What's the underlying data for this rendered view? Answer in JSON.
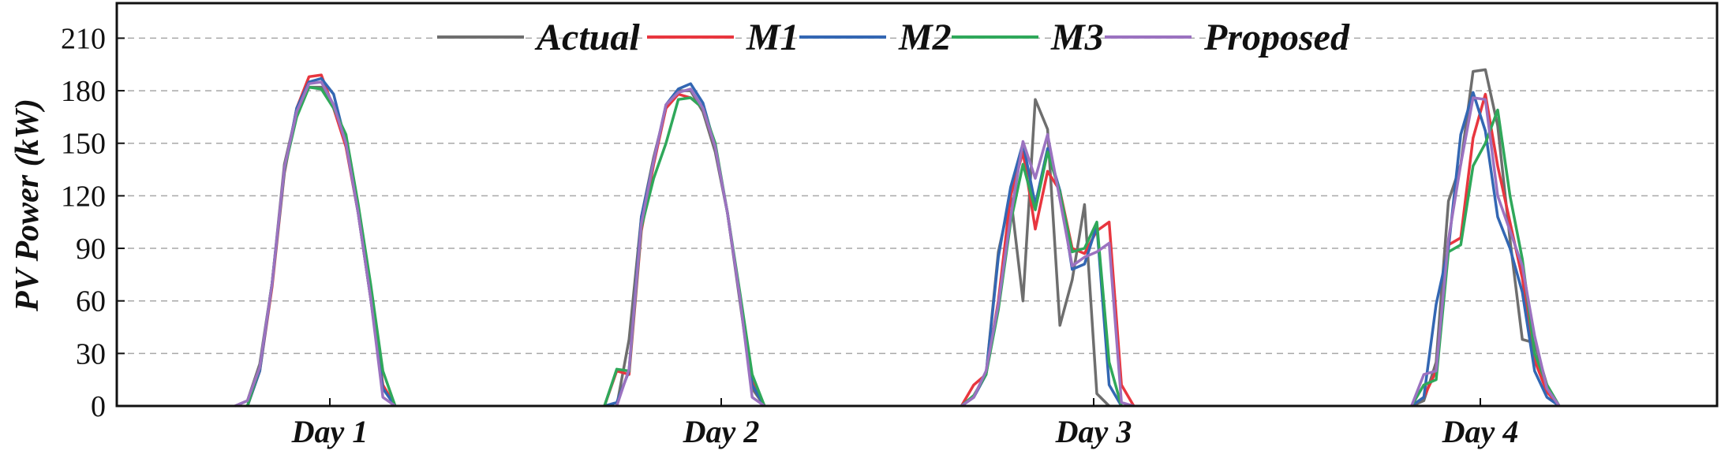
{
  "chart_data": {
    "type": "line",
    "title": "",
    "xlabel": "",
    "ylabel": "PV Power (kW)",
    "ylim": [
      0,
      230
    ],
    "yticks": [
      0,
      30,
      60,
      90,
      120,
      150,
      180,
      210
    ],
    "grid": "horizontal dashed",
    "legend_position": "top",
    "day_labels": [
      "Day 1",
      "Day 2",
      "Day 3",
      "Day 4"
    ],
    "x_points_per_day": 24,
    "series": [
      {
        "name": "Actual",
        "color": "#6e6e6e",
        "values": [
          0,
          0,
          0,
          0,
          0,
          0,
          0,
          0,
          0,
          0,
          3,
          24,
          70,
          138,
          168,
          182,
          182,
          170,
          150,
          110,
          62,
          10,
          0,
          0,
          0,
          0,
          0,
          0,
          0,
          0,
          0,
          0,
          0,
          0,
          0,
          38,
          108,
          142,
          170,
          180,
          180,
          168,
          145,
          110,
          60,
          10,
          0,
          0,
          0,
          0,
          0,
          0,
          0,
          0,
          0,
          0,
          0,
          5,
          18,
          88,
          120,
          60,
          175,
          158,
          46,
          72,
          115,
          7,
          0,
          0,
          0,
          0,
          0,
          0,
          0,
          0,
          0,
          0,
          0,
          0,
          0,
          0,
          0,
          0,
          0,
          3,
          25,
          117,
          138,
          191,
          192,
          160,
          95,
          38,
          36,
          12,
          0,
          0
        ]
      },
      {
        "name": "M1",
        "color": "#e8363f",
        "values": [
          0,
          0,
          0,
          0,
          0,
          0,
          0,
          0,
          0,
          0,
          0,
          20,
          68,
          133,
          170,
          188,
          189,
          170,
          148,
          110,
          62,
          12,
          0,
          0,
          0,
          0,
          0,
          0,
          0,
          0,
          0,
          0,
          0,
          0,
          20,
          18,
          100,
          138,
          170,
          178,
          176,
          170,
          148,
          110,
          62,
          15,
          0,
          0,
          0,
          0,
          0,
          0,
          0,
          0,
          0,
          0,
          0,
          12,
          18,
          60,
          120,
          145,
          101,
          134,
          123,
          90,
          87,
          100,
          105,
          12,
          0,
          0,
          0,
          0,
          0,
          0,
          0,
          0,
          0,
          0,
          0,
          0,
          0,
          0,
          0,
          5,
          20,
          92,
          96,
          153,
          178,
          137,
          105,
          73,
          26,
          8,
          0
        ]
      },
      {
        "name": "M2",
        "color": "#3367b3",
        "values": [
          0,
          0,
          0,
          0,
          0,
          0,
          0,
          0,
          0,
          0,
          0,
          20,
          70,
          134,
          170,
          185,
          187,
          178,
          150,
          110,
          62,
          10,
          0,
          0,
          0,
          0,
          0,
          0,
          0,
          0,
          0,
          0,
          0,
          0,
          2,
          20,
          108,
          140,
          172,
          181,
          184,
          173,
          148,
          110,
          62,
          12,
          0,
          0,
          0,
          0,
          0,
          0,
          0,
          0,
          0,
          0,
          0,
          5,
          18,
          85,
          125,
          150,
          115,
          147,
          123,
          78,
          81,
          103,
          12,
          0,
          0,
          0,
          0,
          0,
          0,
          0,
          0,
          0,
          0,
          0,
          0,
          0,
          0,
          0,
          0,
          5,
          58,
          90,
          155,
          179,
          157,
          108,
          90,
          65,
          20,
          5,
          0
        ]
      },
      {
        "name": "M3",
        "color": "#2fa85a",
        "values": [
          0,
          0,
          0,
          0,
          0,
          0,
          0,
          0,
          0,
          0,
          0,
          22,
          70,
          135,
          165,
          182,
          181,
          170,
          155,
          115,
          70,
          20,
          0,
          0,
          0,
          0,
          0,
          0,
          0,
          0,
          0,
          0,
          0,
          0,
          21,
          20,
          102,
          130,
          150,
          175,
          176,
          170,
          150,
          110,
          65,
          18,
          0,
          0,
          0,
          0,
          0,
          0,
          0,
          0,
          0,
          0,
          0,
          6,
          18,
          55,
          105,
          138,
          112,
          145,
          122,
          88,
          90,
          105,
          25,
          0,
          0,
          0,
          0,
          0,
          0,
          0,
          0,
          0,
          0,
          0,
          0,
          0,
          0,
          0,
          0,
          12,
          15,
          88,
          92,
          137,
          150,
          169,
          120,
          84,
          30,
          12,
          0
        ]
      },
      {
        "name": "Proposed",
        "color": "#9b72c0",
        "values": [
          0,
          0,
          0,
          0,
          0,
          0,
          0,
          0,
          0,
          0,
          3,
          22,
          70,
          136,
          168,
          184,
          185,
          172,
          150,
          110,
          62,
          5,
          0,
          0,
          0,
          0,
          0,
          0,
          0,
          0,
          0,
          0,
          0,
          0,
          0,
          21,
          104,
          140,
          172,
          179,
          181,
          170,
          148,
          110,
          62,
          5,
          0,
          0,
          0,
          0,
          0,
          0,
          0,
          0,
          0,
          0,
          0,
          5,
          20,
          58,
          108,
          151,
          130,
          155,
          118,
          80,
          85,
          88,
          93,
          2,
          0,
          0,
          0,
          0,
          0,
          0,
          0,
          0,
          0,
          0,
          0,
          0,
          0,
          0,
          0,
          18,
          20,
          95,
          138,
          176,
          175,
          120,
          100,
          80,
          40,
          10,
          0
        ]
      }
    ]
  }
}
